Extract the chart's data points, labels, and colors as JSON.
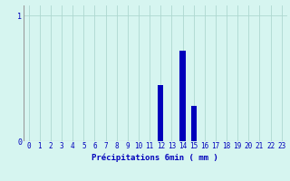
{
  "hours": [
    0,
    1,
    2,
    3,
    4,
    5,
    6,
    7,
    8,
    9,
    10,
    11,
    12,
    13,
    14,
    15,
    16,
    17,
    18,
    19,
    20,
    21,
    22,
    23
  ],
  "values": [
    0,
    0,
    0,
    0,
    0,
    0,
    0,
    0,
    0,
    0,
    0,
    0,
    0.45,
    0.0,
    0.72,
    0.28,
    0,
    0,
    0,
    0,
    0,
    0,
    0,
    0
  ],
  "bar_color": "#0000bb",
  "bg_color": "#d6f5f0",
  "grid_color": "#aed8d0",
  "axis_color": "#999999",
  "text_color": "#0000bb",
  "xlabel": "Précipitations 6min ( mm )",
  "ylim": [
    0,
    1.08
  ],
  "ytick_vals": [
    0,
    1
  ],
  "ytick_labels": [
    "0",
    "1"
  ],
  "xlim": [
    -0.5,
    23.5
  ],
  "xticks": [
    0,
    1,
    2,
    3,
    4,
    5,
    6,
    7,
    8,
    9,
    10,
    11,
    12,
    13,
    14,
    15,
    16,
    17,
    18,
    19,
    20,
    21,
    22,
    23
  ],
  "bar_width": 0.5,
  "xlabel_fontsize": 6.5,
  "tick_fontsize": 5.5
}
